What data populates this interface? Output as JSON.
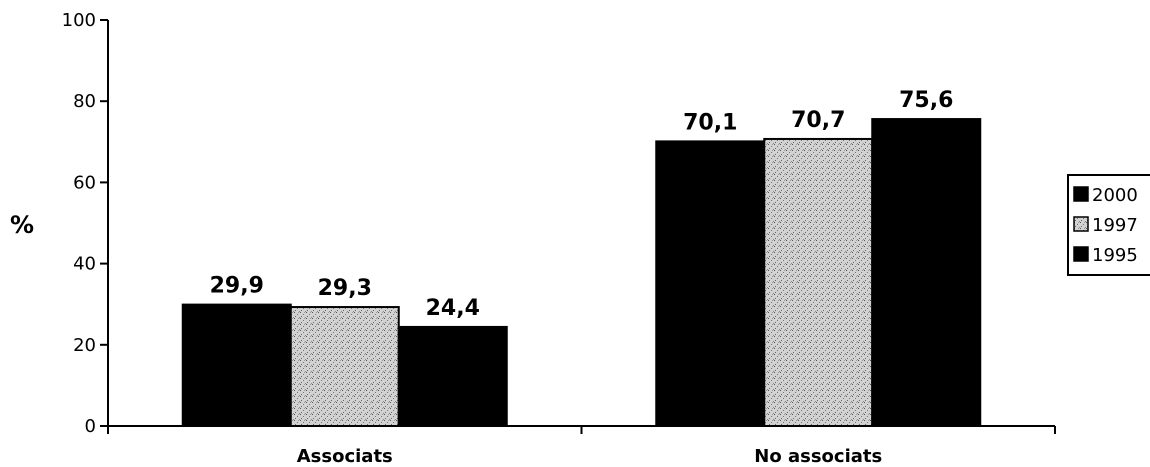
{
  "chart_data": {
    "type": "bar",
    "title": "",
    "xlabel": "",
    "ylabel": "%",
    "ylim": [
      0,
      100
    ],
    "yticks": [
      0,
      20,
      40,
      60,
      80,
      100
    ],
    "categories": [
      "Associats",
      "No associats"
    ],
    "series": [
      {
        "name": "2000",
        "values": [
          29.9,
          70.1
        ],
        "labels": [
          "29,9",
          "70,1"
        ],
        "color": "#000000",
        "pattern": "solid"
      },
      {
        "name": "1997",
        "values": [
          29.3,
          70.7
        ],
        "labels": [
          "29,3",
          "70,7"
        ],
        "color": "#bcbcbc",
        "pattern": "stipple"
      },
      {
        "name": "1995",
        "values": [
          24.4,
          75.6
        ],
        "labels": [
          "24,4",
          "75,6"
        ],
        "color": "#000000",
        "pattern": "solid"
      }
    ],
    "legend_position": "right",
    "grid": false
  }
}
